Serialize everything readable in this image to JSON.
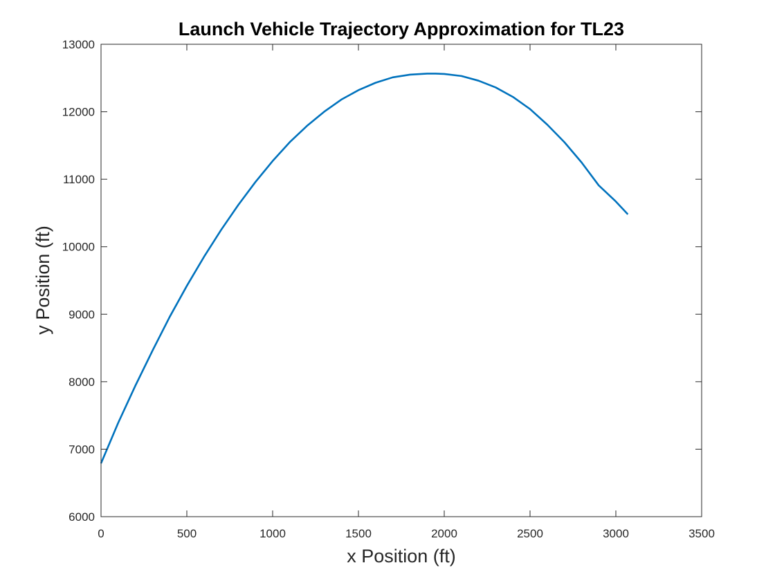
{
  "chart_data": {
    "type": "line",
    "title": "Launch Vehicle Trajectory Approximation for TL23",
    "xlabel": "x Position (ft)",
    "ylabel": "y Position (ft)",
    "xlim": [
      0,
      3500
    ],
    "ylim": [
      6000,
      13000
    ],
    "xticks": [
      0,
      500,
      1000,
      1500,
      2000,
      2500,
      3000,
      3500
    ],
    "yticks": [
      6000,
      7000,
      8000,
      9000,
      10000,
      11000,
      12000,
      13000
    ],
    "grid": false,
    "colors": {
      "line": "#0072BD",
      "axes": "#262626"
    },
    "series": [
      {
        "x": [
          0,
          100,
          200,
          300,
          400,
          500,
          600,
          700,
          800,
          900,
          1000,
          1100,
          1200,
          1300,
          1400,
          1500,
          1600,
          1700,
          1800,
          1900,
          1950,
          2000,
          2100,
          2200,
          2300,
          2400,
          2500,
          2600,
          2700,
          2800,
          2900,
          3000,
          3070
        ],
        "y": [
          6790,
          7390,
          7940,
          8460,
          8960,
          9420,
          9850,
          10250,
          10620,
          10960,
          11270,
          11550,
          11790,
          12000,
          12180,
          12320,
          12430,
          12510,
          12550,
          12565,
          12565,
          12560,
          12530,
          12460,
          12360,
          12220,
          12040,
          11810,
          11550,
          11250,
          10910,
          10670,
          10480
        ]
      }
    ]
  }
}
